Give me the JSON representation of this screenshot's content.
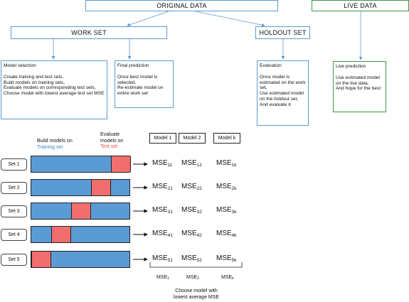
{
  "top": {
    "original_data": "ORIGINAL DATA",
    "live_data": "LIVE DATA",
    "work_set": "WORK SET",
    "holdout_set": "HOLDOUT SET"
  },
  "notes": {
    "model_selection": {
      "title": "Model selection",
      "lines": [
        "Create training and test sets,",
        "Build models on training sets,",
        "Evaluate models on corresponding test sets,",
        "Choose model with lowest average test set MSE"
      ]
    },
    "final_prediction": {
      "title": "Final prediction",
      "lines": [
        "Once best model is selected,",
        "Re-estimate model on entire work set"
      ]
    },
    "evaluation": {
      "title": "Evaluation",
      "lines": [
        "Once model is estimated on the work set,",
        "Use estimated model on the holdout set,",
        "And evaluate it"
      ]
    },
    "live_prediction": {
      "title": "Live prediction",
      "lines": [
        "Use estimated model on the live data,",
        "And hope for the best"
      ]
    }
  },
  "cv": {
    "build_label": "Build models on",
    "training_set": "Training set",
    "evaluate_label": "Evaluate models on",
    "test_set": "Test set",
    "models": [
      "Model 1",
      "Model 2",
      "Model k"
    ],
    "sets": [
      {
        "name": "Set 1",
        "test_fold": 5,
        "mse": [
          [
            "MSE",
            "11"
          ],
          [
            "MSE",
            "12"
          ],
          [
            "MSE",
            "1k"
          ]
        ]
      },
      {
        "name": "Set 2",
        "test_fold": 4,
        "mse": [
          [
            "MSE",
            "21"
          ],
          [
            "MSE",
            "22"
          ],
          [
            "MSE",
            "2k"
          ]
        ]
      },
      {
        "name": "Set 3",
        "test_fold": 3,
        "mse": [
          [
            "MSE",
            "31"
          ],
          [
            "MSE",
            "32"
          ],
          [
            "MSE",
            "3k"
          ]
        ]
      },
      {
        "name": "Set 4",
        "test_fold": 2,
        "mse": [
          [
            "MSE",
            "41"
          ],
          [
            "MSE",
            "42"
          ],
          [
            "MSE",
            "4k"
          ]
        ]
      },
      {
        "name": "Set 5",
        "test_fold": 1,
        "mse": [
          [
            "MSE",
            "51"
          ],
          [
            "MSE",
            "52"
          ],
          [
            "MSE",
            "5k"
          ]
        ]
      }
    ],
    "fold_count": 5,
    "averages": [
      [
        "MSE",
        "1"
      ],
      [
        "MSE",
        "2"
      ],
      [
        "MSE",
        "k"
      ]
    ],
    "choose_line1": "Choose model with",
    "choose_line2": "lowest average MSE"
  },
  "colors": {
    "training": "#5b9bd5",
    "test": "#f26d6d",
    "live_border": "#3a9a4a",
    "connector": "#5b9bd5"
  }
}
